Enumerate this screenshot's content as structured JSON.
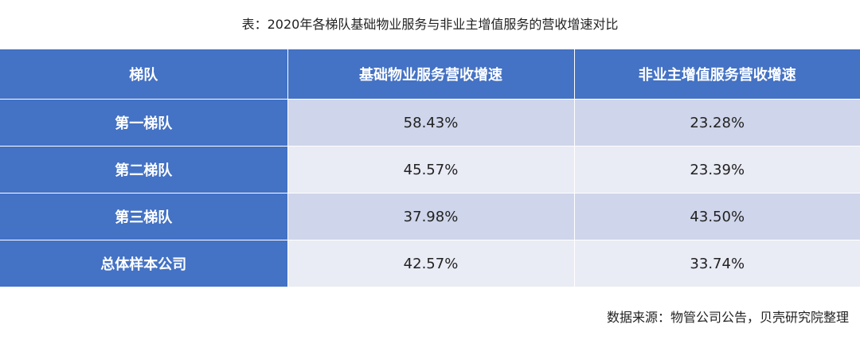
{
  "title": "表：2020年各梯队基础物业服务与非业主增值服务的营收增速对比",
  "chart_data": {
    "type": "table",
    "columns": [
      "梯队",
      "基础物业服务营收增速",
      "非业主增值服务营收增速"
    ],
    "rows": [
      [
        "第一梯队",
        "58.43%",
        "23.28%"
      ],
      [
        "第二梯队",
        "45.57%",
        "23.39%"
      ],
      [
        "第三梯队",
        "37.98%",
        "43.50%"
      ],
      [
        "总体样本公司",
        "42.57%",
        "33.74%"
      ]
    ]
  },
  "source": "数据来源：物管公司公告，贝壳研究院整理",
  "colors": {
    "header": "#4472c4",
    "row_band_dark": "#cfd5ea",
    "row_band_light": "#e9ebf5"
  }
}
